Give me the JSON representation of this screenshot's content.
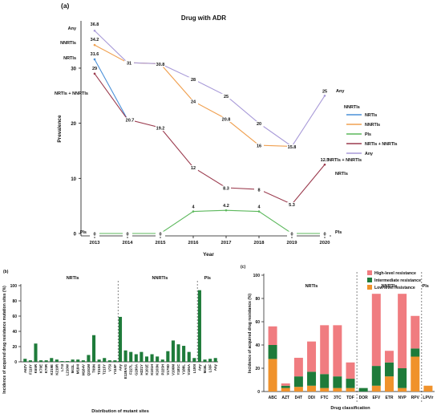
{
  "chart_data": [
    {
      "panel": "(a)",
      "type": "line",
      "title": "Drug with ADR",
      "xlabel": "Year",
      "ylabel": "Prevalence",
      "x": [
        "2013",
        "2014",
        "2015",
        "2016",
        "2017",
        "2018",
        "2019",
        "2020"
      ],
      "yticks": [
        "0",
        "10",
        "20",
        "30"
      ],
      "ylim": [
        0,
        38
      ],
      "legend_position": "right",
      "series": [
        {
          "name": "NRTIs",
          "color": "#4a90d9",
          "values": [
            31.6,
            20.7,
            null,
            null,
            null,
            null,
            null,
            null
          ]
        },
        {
          "name": "NNRTIs",
          "color": "#f0a050",
          "values": [
            34.2,
            31,
            30.8,
            24,
            20.8,
            16,
            15.8,
            null
          ]
        },
        {
          "name": "PIs",
          "color": "#5cb85c",
          "values": [
            0,
            0,
            0,
            4,
            4.2,
            4,
            0,
            0
          ]
        },
        {
          "name": "NRTIs + NNRTIs",
          "color": "#9b3b4e",
          "values": [
            29,
            20.7,
            19.2,
            12,
            8.3,
            8,
            5.3,
            12.5
          ]
        },
        {
          "name": "Any",
          "color": "#a89ad8",
          "values": [
            36.8,
            31,
            30.8,
            28,
            25,
            20,
            15.8,
            25
          ]
        }
      ],
      "point_labels": [
        {
          "series": "Any",
          "x": "2013",
          "text": "36.8"
        },
        {
          "series": "NNRTIs",
          "x": "2013",
          "text": "34.2"
        },
        {
          "series": "NRTIs",
          "x": "2013",
          "text": "31.6"
        },
        {
          "series": "NRTIs + NNRTIs",
          "x": "2013",
          "text": "29"
        },
        {
          "series": "PIs",
          "x": "2013",
          "text": "0"
        },
        {
          "series": "NNRTIs",
          "x": "2014",
          "text": "31"
        },
        {
          "series": "NRTIs + NNRTIs",
          "x": "2014",
          "text": "20.7"
        },
        {
          "series": "PIs",
          "x": "2014",
          "text": "0"
        },
        {
          "series": "NNRTIs",
          "x": "2015",
          "text": "30.8"
        },
        {
          "series": "NRTIs + NNRTIs",
          "x": "2015",
          "text": "19.2"
        },
        {
          "series": "PIs",
          "x": "2015",
          "text": "0"
        },
        {
          "series": "Any",
          "x": "2016",
          "text": "28"
        },
        {
          "series": "NNRTIs",
          "x": "2016",
          "text": "24"
        },
        {
          "series": "NRTIs + NNRTIs",
          "x": "2016",
          "text": "12"
        },
        {
          "series": "PIs",
          "x": "2016",
          "text": "4"
        },
        {
          "series": "Any",
          "x": "2017",
          "text": "25"
        },
        {
          "series": "NNRTIs",
          "x": "2017",
          "text": "20.8"
        },
        {
          "series": "NRTIs + NNRTIs",
          "x": "2017",
          "text": "8.3"
        },
        {
          "series": "PIs",
          "x": "2017",
          "text": "4.2"
        },
        {
          "series": "Any",
          "x": "2018",
          "text": "20"
        },
        {
          "series": "NNRTIs",
          "x": "2018",
          "text": "16"
        },
        {
          "series": "NRTIs + NNRTIs",
          "x": "2018",
          "text": "8"
        },
        {
          "series": "PIs",
          "x": "2018",
          "text": "4"
        },
        {
          "series": "NNRTIs",
          "x": "2019",
          "text": "15.8"
        },
        {
          "series": "NRTIs + NNRTIs",
          "x": "2019",
          "text": "5.3"
        },
        {
          "series": "PIs",
          "x": "2019",
          "text": "0"
        },
        {
          "series": "Any",
          "x": "2020",
          "text": "25"
        },
        {
          "series": "NRTIs + NNRTIs",
          "x": "2020",
          "text": "12.5"
        },
        {
          "series": "PIs",
          "x": "2020",
          "text": "0"
        }
      ],
      "series_end_labels": [
        {
          "text": "Any",
          "side": "left",
          "series": "Any"
        },
        {
          "text": "NNRTIs",
          "side": "left",
          "series": "NNRTIs"
        },
        {
          "text": "NRTIs",
          "side": "left",
          "series": "NRTIs"
        },
        {
          "text": "NRTIs + NNRTIs",
          "side": "left",
          "series": "NRTIs + NNRTIs"
        },
        {
          "text": "PIs",
          "side": "left",
          "series": "PIs"
        },
        {
          "text": "Any",
          "side": "right",
          "series": "Any"
        },
        {
          "text": "NNRTIs",
          "side": "right",
          "series": "NNRTIs"
        },
        {
          "text": "NRTIs + NNRTIs",
          "side": "right",
          "series": "NRTIs + NNRTIs"
        },
        {
          "text": "NRTIs",
          "side": "right",
          "series": "NRTIs"
        },
        {
          "text": "PIs",
          "side": "right",
          "series": "PIs"
        }
      ]
    },
    {
      "panel": "(b)",
      "type": "bar",
      "xlabel": "Distribution of mutant sites",
      "ylabel": "Incidence of acquired drug resistance mutation sites (%)",
      "ylim": [
        0,
        100
      ],
      "yticks": [
        "0",
        "20",
        "40",
        "60",
        "80",
        "100"
      ],
      "color": "#1e7b3a",
      "groups": [
        "NRTIs",
        "NNRTIs",
        "PIs"
      ],
      "categories": [
        "A62V",
        "F116Y",
        "K65R",
        "K70E",
        "K70R",
        "K219E",
        "K219R",
        "L74I",
        "L210W",
        "M41L",
        "M184I",
        "M184V",
        "Q151M",
        "T69N",
        "T215S",
        "T215Y",
        "V75I",
        "Y115F",
        "Any",
        "E138A/G",
        "F227L",
        "G190A",
        "H221Y",
        "K101E",
        "K101H",
        "K103N",
        "P225H",
        "V179D",
        "V106M",
        "Y181C",
        "Y188L",
        "V106A",
        "L100I",
        "Any",
        "M46L",
        "L33F",
        "Any"
      ],
      "values": [
        4,
        2,
        24,
        2,
        2,
        5,
        3,
        1,
        1,
        3,
        3,
        2,
        9,
        35,
        3,
        5,
        2,
        2,
        59,
        15,
        13,
        10,
        13,
        7,
        10,
        7,
        3,
        14,
        28,
        23,
        21,
        13,
        5,
        94,
        3,
        4,
        5
      ],
      "separators_after": [
        "Any",
        "Any"
      ]
    },
    {
      "panel": "(c)",
      "type": "bar",
      "stacked": true,
      "xlabel": "Drug classification",
      "ylabel": "Incidence of acquired drug resistance (%)",
      "ylim": [
        0,
        100
      ],
      "yticks": [
        "0",
        "20",
        "40",
        "60",
        "80",
        "100"
      ],
      "groups": [
        "NRTIs",
        "NNRTIs",
        "PIs"
      ],
      "categories": [
        "ABC",
        "AZT",
        "D4T",
        "DDI",
        "FTC",
        "3TC",
        "TDF",
        "DOR",
        "EFV",
        "ETR",
        "NVP",
        "RPV",
        "LPV/r"
      ],
      "legend_position": "top-right",
      "series": [
        {
          "name": "Low-level resistance",
          "color": "#f0922b",
          "values": [
            28,
            3,
            4,
            5,
            3,
            3,
            3,
            0,
            5,
            13,
            3,
            30,
            5
          ]
        },
        {
          "name": "Intermediate resistance",
          "color": "#1e7b3a",
          "values": [
            12,
            2,
            9,
            12,
            12,
            10,
            8,
            3,
            17,
            12,
            17,
            7,
            0
          ]
        },
        {
          "name": "High-level resistance",
          "color": "#f07c80",
          "values": [
            16,
            2,
            16,
            26,
            42,
            44,
            14,
            0,
            62,
            10,
            64,
            28,
            0
          ]
        }
      ],
      "separators_after": [
        "TDF",
        "RPV"
      ]
    }
  ]
}
